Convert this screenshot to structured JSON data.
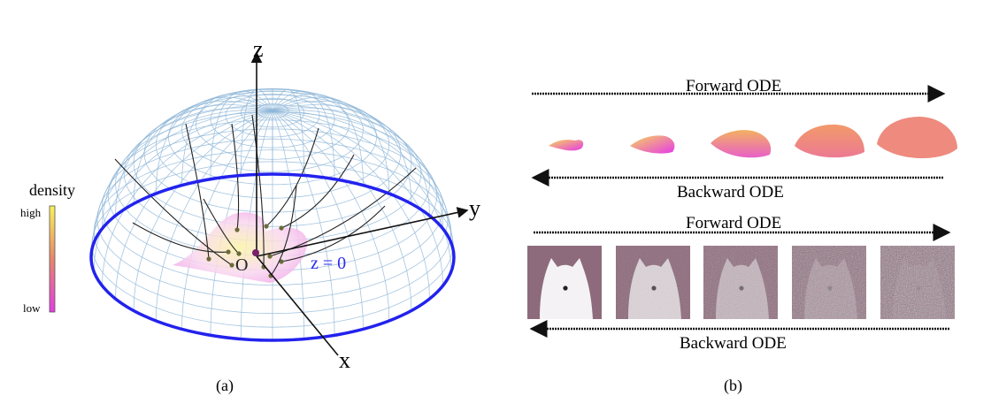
{
  "panel_a": {
    "caption": "(a)",
    "axes": {
      "x": "x",
      "y": "y",
      "z": "z",
      "origin": "O"
    },
    "plane_label": "z = 0",
    "colorbar": {
      "title": "density",
      "high": "high",
      "low": "low",
      "colors": [
        "#f7f25a",
        "#e8866a",
        "#e63ce6"
      ]
    },
    "equator_color": "#2222ee",
    "grid_color": "#8fb6d8"
  },
  "panel_b": {
    "caption": "(b)",
    "rows": [
      {
        "forward": "Forward ODE",
        "backward": "Backward ODE",
        "content": "density-shapes",
        "steps": 5
      },
      {
        "forward": "Forward ODE",
        "backward": "Backward ODE",
        "content": "dog-images-noise",
        "steps": 5,
        "noise_levels": [
          0,
          0.25,
          0.5,
          0.8,
          1.0
        ]
      }
    ]
  }
}
